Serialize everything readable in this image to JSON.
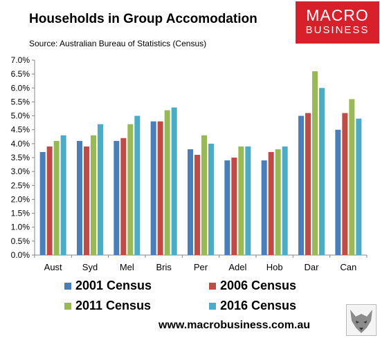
{
  "header": {
    "title": "Households in Group Accomodation",
    "source": "Source: Australian Bureau of Statistics (Census)"
  },
  "logo": {
    "line1": "MACRO",
    "line2": "BUSINESS",
    "color": "#d8202a"
  },
  "footer": {
    "url": "www.macrobusiness.com.au"
  },
  "chart_data": {
    "type": "bar",
    "title": "Households in Group Accomodation",
    "xlabel": "",
    "ylabel": "",
    "ylim": [
      0,
      7
    ],
    "ytick_values": [
      0,
      0.5,
      1,
      1.5,
      2,
      2.5,
      3,
      3.5,
      4,
      4.5,
      5,
      5.5,
      6,
      6.5,
      7
    ],
    "ytick_labels": [
      "0.0%",
      "0.5%",
      "1.0%",
      "1.5%",
      "2.0%",
      "2.5%",
      "3.0%",
      "3.5%",
      "4.0%",
      "4.5%",
      "5.0%",
      "5.5%",
      "6.0%",
      "6.5%",
      "7.0%"
    ],
    "grid": false,
    "legend_position": "bottom",
    "categories": [
      "Aust",
      "Syd",
      "Mel",
      "Bris",
      "Per",
      "Adel",
      "Hob",
      "Dar",
      "Can"
    ],
    "series": [
      {
        "name": "2001 Census",
        "color": "#4a7ebb",
        "values": [
          3.7,
          4.1,
          4.1,
          4.8,
          3.8,
          3.4,
          3.4,
          5.0,
          4.5
        ]
      },
      {
        "name": "2006 Census",
        "color": "#be4b48",
        "values": [
          3.9,
          3.9,
          4.2,
          4.8,
          3.6,
          3.5,
          3.7,
          5.1,
          5.1
        ]
      },
      {
        "name": "2011 Census",
        "color": "#98b954",
        "values": [
          4.1,
          4.3,
          4.7,
          5.2,
          4.3,
          3.9,
          3.8,
          6.6,
          5.6
        ]
      },
      {
        "name": "2016 Census",
        "color": "#4bacc6",
        "values": [
          4.3,
          4.7,
          5.0,
          5.3,
          4.0,
          3.9,
          3.9,
          6.0,
          4.9
        ]
      }
    ]
  }
}
